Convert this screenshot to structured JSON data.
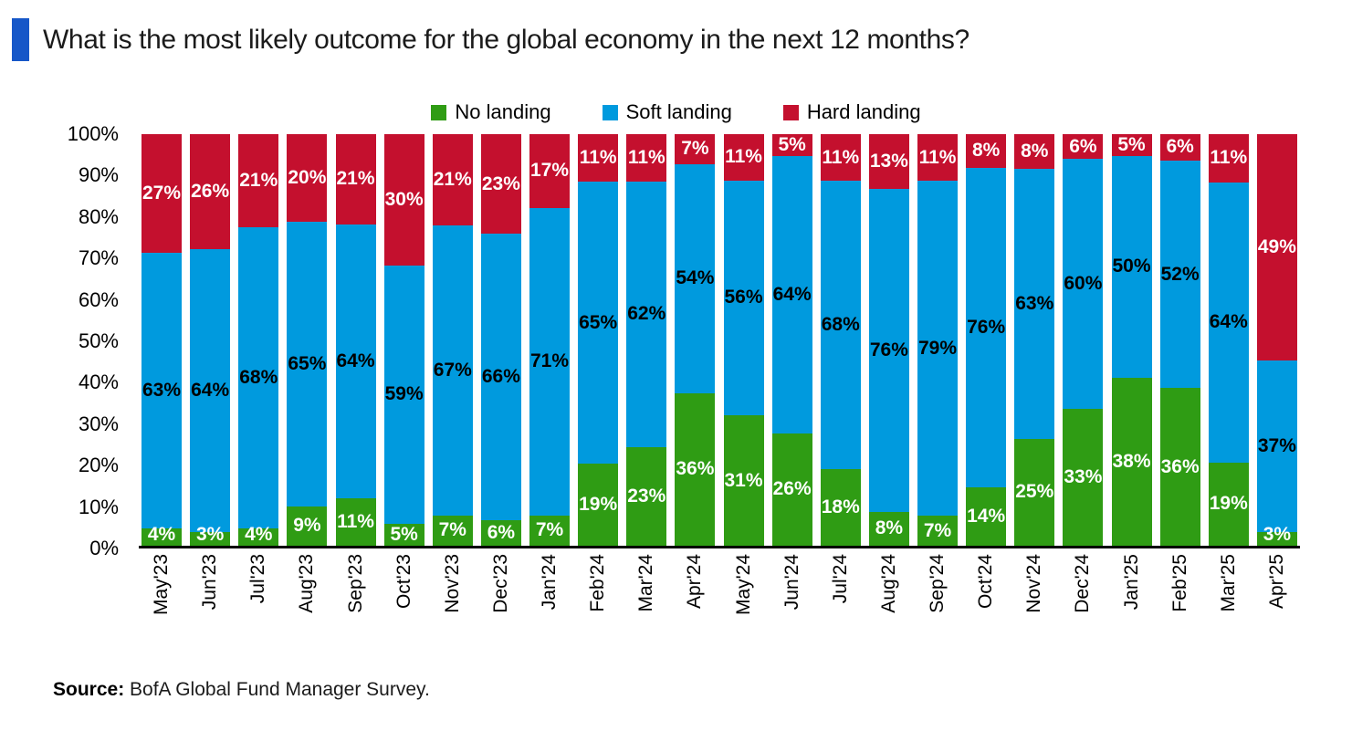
{
  "title": "What is the most likely outcome for the global economy in the next 12 months?",
  "accent_color": "#1657c8",
  "legend": [
    {
      "label": "No landing",
      "color": "#2f9c14"
    },
    {
      "label": "Soft landing",
      "color": "#009ade"
    },
    {
      "label": "Hard landing",
      "color": "#c4102e"
    }
  ],
  "source": {
    "label": "Source:",
    "text": " BofA Global Fund Manager Survey."
  },
  "chart_data": {
    "type": "bar",
    "stacked": true,
    "bars_normalized_to_100pct": true,
    "title": "What is the most likely outcome for the global economy in the next 12 months?",
    "xlabel": "",
    "ylabel": "",
    "ylim": [
      0,
      100
    ],
    "yticks": [
      "0%",
      "10%",
      "20%",
      "30%",
      "40%",
      "50%",
      "60%",
      "70%",
      "80%",
      "90%",
      "100%"
    ],
    "grid": false,
    "legend_position": "top",
    "categories": [
      "May'23",
      "Jun'23",
      "Jul'23",
      "Aug'23",
      "Sep'23",
      "Oct'23",
      "Nov'23",
      "Dec'23",
      "Jan'24",
      "Feb'24",
      "Mar'24",
      "Apr'24",
      "May'24",
      "Jun'24",
      "Jul'24",
      "Aug'24",
      "Sep'24",
      "Oct'24",
      "Nov'24",
      "Dec'24",
      "Jan'25",
      "Feb'25",
      "Mar'25",
      "Apr'25"
    ],
    "series": [
      {
        "name": "No landing",
        "color": "#2f9c14",
        "label_color": "#ffffff",
        "values": [
          4,
          3,
          4,
          9,
          11,
          5,
          7,
          6,
          7,
          19,
          23,
          36,
          31,
          26,
          18,
          8,
          7,
          14,
          25,
          33,
          38,
          36,
          19,
          3
        ]
      },
      {
        "name": "Soft landing",
        "color": "#009ade",
        "label_color": "#000000",
        "values": [
          63,
          64,
          68,
          65,
          64,
          59,
          67,
          66,
          71,
          65,
          62,
          54,
          56,
          64,
          68,
          76,
          79,
          76,
          63,
          60,
          50,
          52,
          64,
          37
        ]
      },
      {
        "name": "Hard landing",
        "color": "#c4102e",
        "label_color": "#ffffff",
        "values": [
          27,
          26,
          21,
          20,
          21,
          30,
          21,
          23,
          17,
          11,
          11,
          7,
          11,
          5,
          11,
          13,
          11,
          8,
          8,
          6,
          5,
          6,
          11,
          49
        ]
      }
    ]
  }
}
